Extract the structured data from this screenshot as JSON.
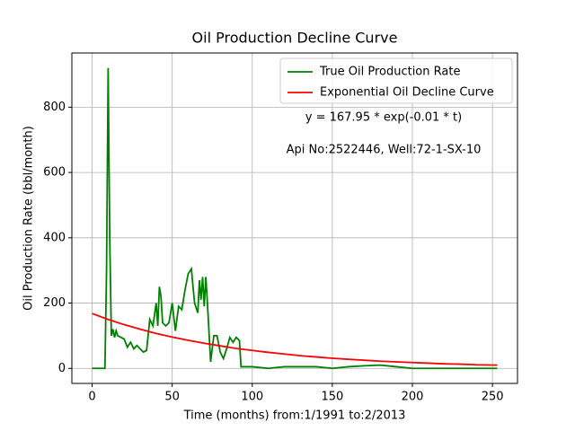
{
  "chart_data": {
    "type": "line",
    "title": "Oil Production Decline Curve",
    "xlabel": "Time (months) from:1/1991 to:2/2013",
    "ylabel": "Oil Production Rate (bbl/month)",
    "annotations": [
      "y = 167.95 * exp(-0.01 * t)",
      "Api No:2522446, Well:72-1-SX-10"
    ],
    "xlim": [
      -12.65,
      265.65
    ],
    "ylim": [
      -46,
      966
    ],
    "xticks": [
      0,
      50,
      100,
      150,
      200,
      250
    ],
    "yticks": [
      0,
      200,
      400,
      600,
      800
    ],
    "grid": true,
    "legend": "upper right",
    "series": [
      {
        "name": "True Oil Production Rate",
        "color": "#008000",
        "x": [
          0,
          8,
          9,
          10,
          11,
          12,
          13,
          14,
          15,
          16,
          18,
          20,
          22,
          24,
          26,
          28,
          30,
          32,
          34,
          36,
          38,
          40,
          41,
          42,
          43,
          44,
          46,
          48,
          50,
          52,
          54,
          56,
          58,
          60,
          62,
          63,
          64,
          66,
          67,
          68,
          69,
          70,
          71,
          72,
          73,
          74,
          76,
          78,
          80,
          82,
          84,
          86,
          88,
          90,
          92,
          93,
          94,
          100,
          110,
          120,
          130,
          140,
          150,
          160,
          170,
          180,
          190,
          200,
          210,
          220,
          230,
          240,
          253
        ],
        "values": [
          0,
          0,
          300,
          920,
          400,
          100,
          120,
          95,
          115,
          100,
          95,
          90,
          65,
          80,
          60,
          70,
          60,
          50,
          55,
          150,
          130,
          200,
          130,
          250,
          220,
          140,
          130,
          140,
          200,
          115,
          190,
          180,
          240,
          290,
          305,
          250,
          200,
          170,
          270,
          210,
          280,
          190,
          280,
          200,
          110,
          20,
          100,
          100,
          50,
          30,
          60,
          95,
          80,
          95,
          85,
          5,
          5,
          5,
          0,
          5,
          5,
          5,
          0,
          5,
          8,
          10,
          5,
          0,
          0,
          0,
          0,
          0,
          0
        ]
      },
      {
        "name": "Exponential Oil Decline Curve",
        "color": "#ff0000",
        "x": [
          0,
          10,
          20,
          30,
          40,
          50,
          60,
          70,
          80,
          90,
          100,
          110,
          120,
          130,
          140,
          150,
          160,
          170,
          180,
          190,
          200,
          210,
          220,
          230,
          240,
          253
        ],
        "values": [
          168,
          150,
          134,
          120,
          107,
          96,
          86,
          77,
          69,
          61,
          55,
          49,
          44,
          39,
          35,
          31,
          28,
          25,
          22,
          20,
          18,
          16,
          14,
          13,
          11,
          10
        ]
      }
    ]
  }
}
